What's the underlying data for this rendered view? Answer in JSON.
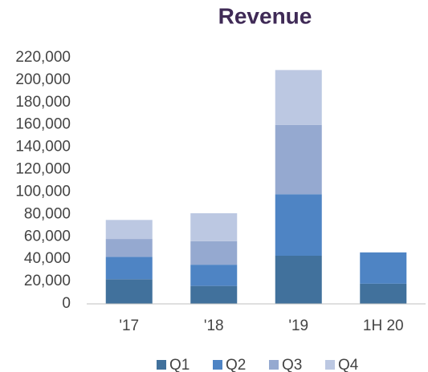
{
  "chart_data": {
    "type": "stacked_bar",
    "title": "Revenue",
    "categories": [
      "'17",
      "'18",
      "'19",
      "1H 20"
    ],
    "series": [
      {
        "name": "Q1",
        "color": "#41719c",
        "values": [
          22000,
          16000,
          43000,
          18000
        ]
      },
      {
        "name": "Q2",
        "color": "#4e84c4",
        "values": [
          20000,
          19000,
          55000,
          28000
        ]
      },
      {
        "name": "Q3",
        "color": "#95a9d0",
        "values": [
          16000,
          21000,
          62000,
          null
        ]
      },
      {
        "name": "Q4",
        "color": "#bcc8e2",
        "values": [
          17000,
          25000,
          49000,
          null
        ]
      }
    ],
    "ylim": [
      0,
      220000
    ],
    "yticks": [
      0,
      {
        "value": 20000,
        "label": "20,000"
      },
      {
        "value": 40000,
        "label": "40,000"
      },
      {
        "value": 60000,
        "label": "60,000"
      },
      {
        "value": 80000,
        "label": "80,000"
      },
      {
        "value": 100000,
        "label": "100,000"
      },
      {
        "value": 120000,
        "label": "120,000"
      },
      {
        "value": 140000,
        "label": "140,000"
      },
      {
        "value": 160000,
        "label": "160,000"
      },
      {
        "value": 180000,
        "label": "180,000"
      },
      {
        "value": 200000,
        "label": "200,000"
      },
      {
        "value": 220000,
        "label": "220,000"
      }
    ],
    "grid": false,
    "legend": "bottom"
  }
}
